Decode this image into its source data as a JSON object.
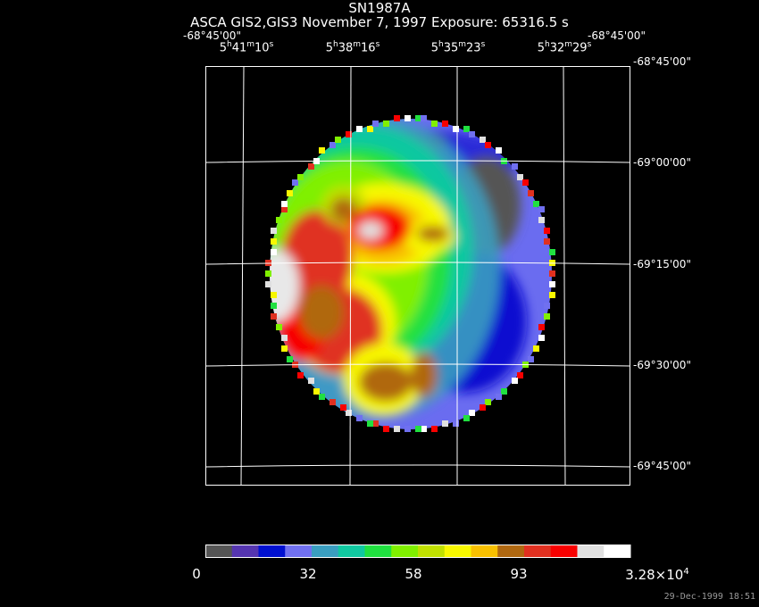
{
  "title": "SN1987A",
  "subtitle": "ASCA GIS2,GIS3 November 7, 1997 Exposure: 65316.5 s",
  "top_left_corner_label": "-68°45'00\"",
  "top_right_corner_label": "-68°45'00\"",
  "ra_labels": [
    {
      "h": "5",
      "m": "41",
      "s": "10"
    },
    {
      "h": "5",
      "m": "38",
      "s": "16"
    },
    {
      "h": "5",
      "m": "35",
      "s": "23"
    },
    {
      "h": "5",
      "m": "32",
      "s": "29"
    }
  ],
  "dec_labels": [
    "-68°45'00\"",
    "-69°00'00\"",
    "-69°15'00\"",
    "-69°30'00\"",
    "-69°45'00\""
  ],
  "colorbar": {
    "colors": [
      "#555555",
      "#5535b0",
      "#0010d0",
      "#7070f0",
      "#3a9ec0",
      "#10c8a0",
      "#20e040",
      "#80f000",
      "#c0e000",
      "#f8f800",
      "#f8c000",
      "#b06810",
      "#e03020",
      "#f80000",
      "#e0e0e0",
      "#ffffff"
    ],
    "tick_labels": [
      "0",
      "32",
      "58",
      "93",
      "3.28×10^4"
    ]
  },
  "timestamp": "29-Dec-1999 18:51"
}
